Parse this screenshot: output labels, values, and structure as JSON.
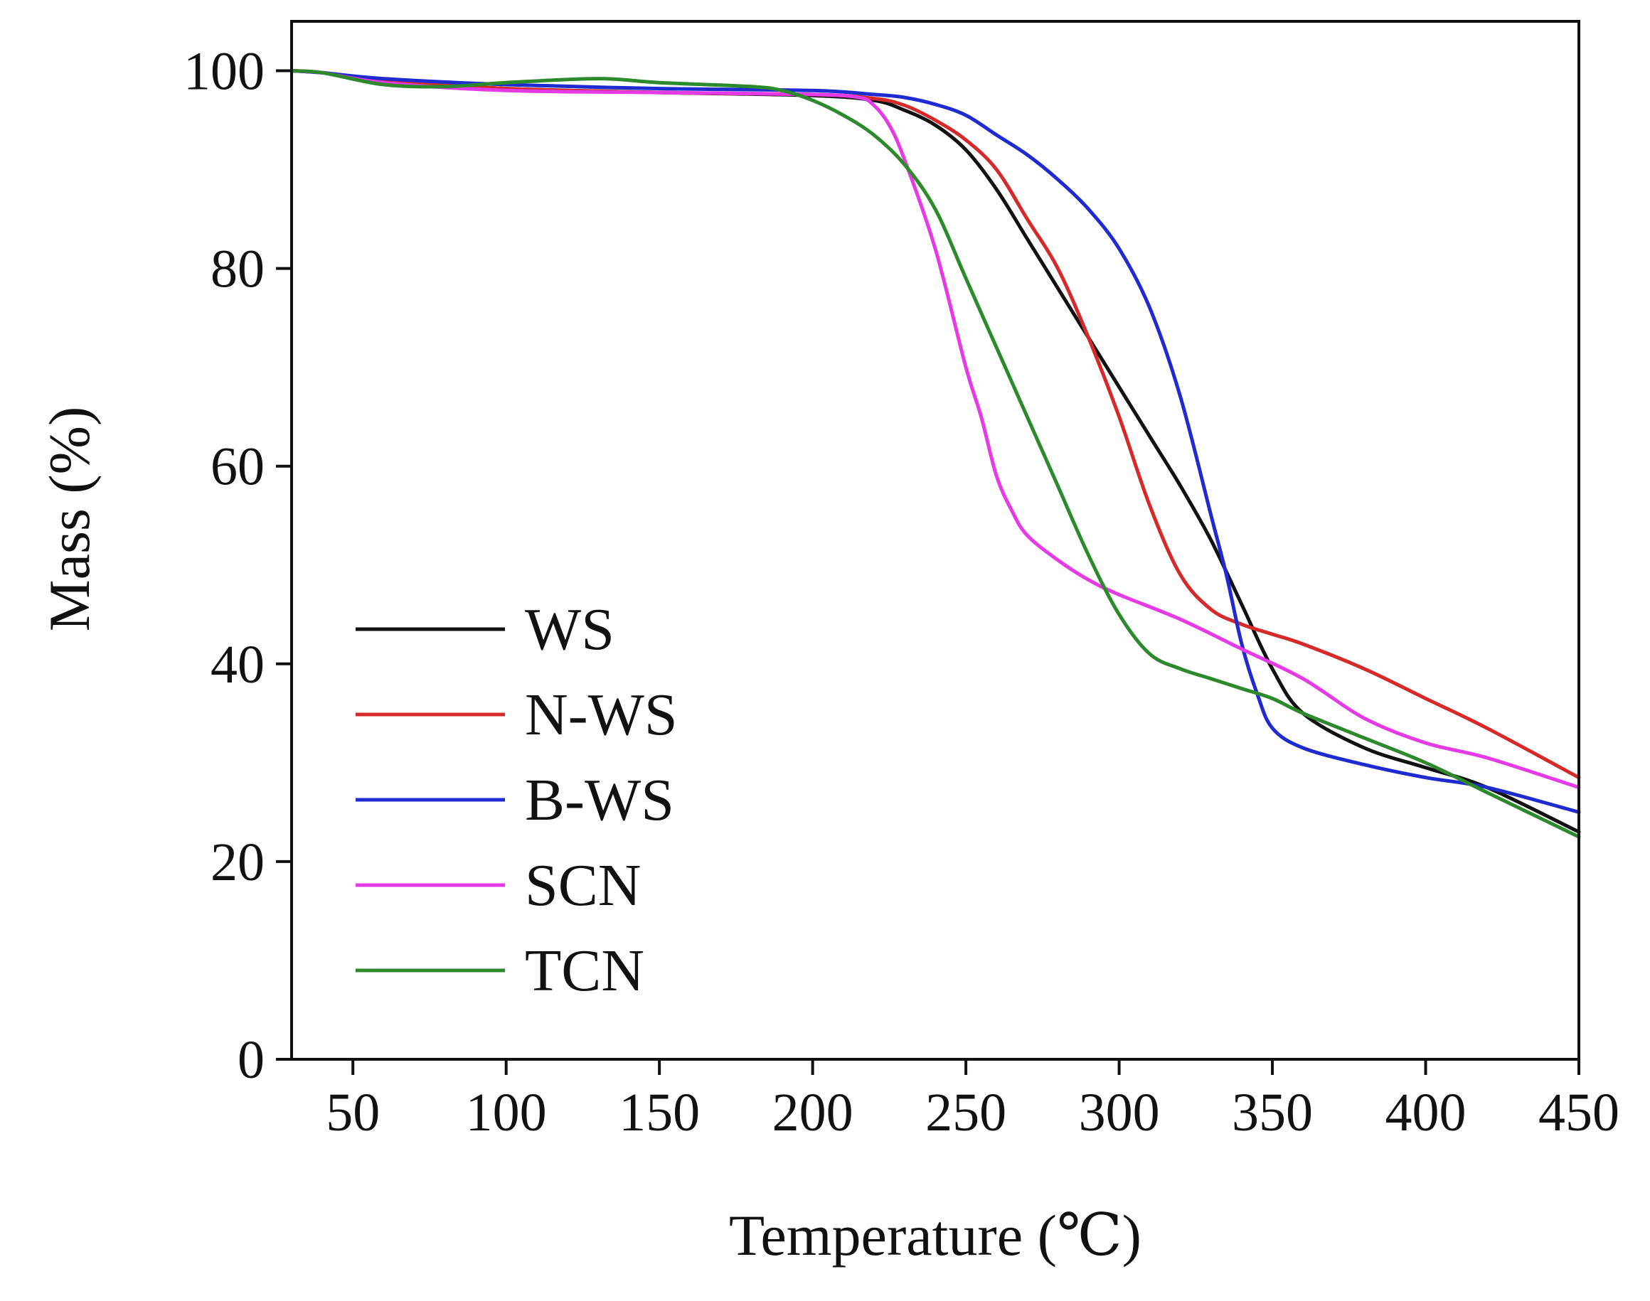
{
  "chart_data": {
    "type": "line",
    "title": "",
    "xlabel": "Temperature (℃)",
    "ylabel": "Mass (%)",
    "xlim": [
      30,
      450
    ],
    "ylim": [
      0,
      105
    ],
    "xticks": [
      50,
      100,
      150,
      200,
      250,
      300,
      350,
      400,
      450
    ],
    "yticks": [
      0,
      20,
      40,
      60,
      80,
      100
    ],
    "grid": false,
    "legend_position": "lower-left",
    "series": [
      {
        "name": "WS",
        "color": "#111111",
        "x": [
          30,
          40,
          60,
          100,
          150,
          200,
          220,
          230,
          240,
          250,
          260,
          270,
          280,
          290,
          300,
          310,
          320,
          330,
          340,
          350,
          360,
          380,
          400,
          420,
          450
        ],
        "y": [
          100,
          99.8,
          99,
          98.2,
          97.8,
          97.5,
          97,
          96,
          94.5,
          92,
          88,
          83,
          78,
          73,
          68,
          63,
          58,
          52.5,
          46,
          39.5,
          35,
          31.5,
          29.5,
          27.5,
          23
        ]
      },
      {
        "name": "N-WS",
        "color": "#d62a2a",
        "x": [
          30,
          40,
          60,
          100,
          150,
          200,
          220,
          230,
          240,
          250,
          260,
          270,
          280,
          290,
          300,
          310,
          320,
          330,
          340,
          350,
          360,
          380,
          400,
          420,
          450
        ],
        "y": [
          100,
          99.8,
          99,
          98.2,
          97.8,
          97.6,
          97.2,
          96.5,
          95,
          93,
          90,
          85,
          80,
          73,
          65,
          56,
          49,
          45.5,
          44,
          43,
          42,
          39.5,
          36.5,
          33.5,
          28.5
        ]
      },
      {
        "name": "B-WS",
        "color": "#1f2bd1",
        "x": [
          30,
          40,
          60,
          100,
          150,
          200,
          220,
          230,
          240,
          250,
          260,
          270,
          280,
          290,
          300,
          310,
          320,
          330,
          335,
          340,
          345,
          350,
          360,
          380,
          400,
          420,
          450
        ],
        "y": [
          100,
          99.8,
          99.2,
          98.6,
          98.2,
          98,
          97.6,
          97.3,
          96.6,
          95.5,
          93.5,
          91.5,
          89,
          86,
          82,
          76,
          67,
          55,
          49,
          42,
          37,
          33.5,
          31.5,
          29.8,
          28.5,
          27.5,
          25
        ]
      },
      {
        "name": "SCN",
        "color": "#e63ae6",
        "x": [
          30,
          40,
          60,
          100,
          150,
          200,
          215,
          220,
          225,
          230,
          240,
          250,
          255,
          260,
          265,
          270,
          280,
          290,
          300,
          320,
          340,
          360,
          380,
          400,
          420,
          450
        ],
        "y": [
          100,
          99.8,
          98.8,
          98,
          97.8,
          97.6,
          97.3,
          96.5,
          94.5,
          91,
          82,
          70,
          65,
          59,
          55.5,
          53,
          50.5,
          48.5,
          47,
          44.5,
          41.5,
          38.5,
          34.5,
          32,
          30.5,
          27.5
        ]
      },
      {
        "name": "TCN",
        "color": "#2c8a2c",
        "x": [
          30,
          40,
          60,
          80,
          100,
          130,
          150,
          180,
          190,
          200,
          210,
          220,
          230,
          240,
          250,
          260,
          270,
          280,
          290,
          300,
          310,
          320,
          330,
          340,
          350,
          360,
          380,
          400,
          420,
          450
        ],
        "y": [
          100,
          99.8,
          98.6,
          98.4,
          98.8,
          99.2,
          98.8,
          98.4,
          98,
          97,
          95.5,
          93.5,
          90.5,
          86,
          79,
          72,
          65,
          58,
          51,
          45,
          41,
          39.5,
          38.5,
          37.5,
          36.5,
          35,
          32.5,
          30,
          27,
          22.5
        ]
      }
    ]
  }
}
